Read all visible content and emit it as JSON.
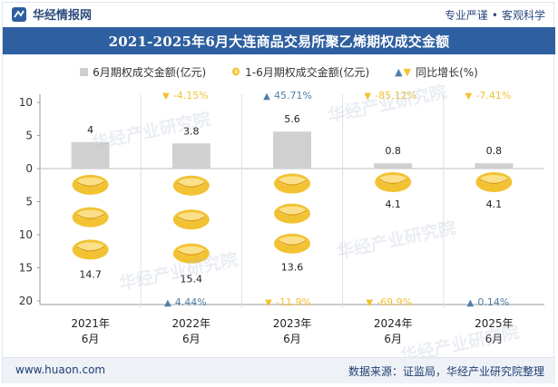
{
  "header": {
    "brand": "华经情报网",
    "tagline_left": "专业严谨",
    "tagline_right": "客观科学"
  },
  "footer": {
    "url": "www.huaon.com",
    "source": "数据来源：证监局，华经产业研究院整理"
  },
  "watermark": "华经产业研究院",
  "colors": {
    "title_bg": "#2e5fa0",
    "bar": "#d0d0d0",
    "coin": "#f2c232",
    "up": "#4f7fa8",
    "down": "#f2c232"
  },
  "chart_data": {
    "type": "bar",
    "title": "2021-2025年6月大连商品交易所聚乙烯期权成交金额",
    "categories": [
      "2021年\n6月",
      "2022年\n6月",
      "2023年\n6月",
      "2024年\n6月",
      "2025年\n6月"
    ],
    "legend": [
      "6月期权成交金额(亿元)",
      "1-6月期权成交金额(亿元)",
      "同比增长(%)"
    ],
    "legend_position": "top",
    "series": [
      {
        "name": "6月期权成交金额(亿元)",
        "values": [
          4,
          3.8,
          5.6,
          0.8,
          0.8
        ],
        "labels": [
          "4",
          "3.8",
          "5.6",
          "0.8",
          "0.8"
        ]
      },
      {
        "name": "1-6月期权成交金额(亿元)",
        "values": [
          14.7,
          15.4,
          13.6,
          4.1,
          4.1
        ],
        "labels": [
          "14.7",
          "15.4",
          "13.6",
          "4.1",
          "4.1"
        ]
      }
    ],
    "growth_monthly": [
      {
        "label": "",
        "dir": ""
      },
      {
        "label": "-4.15%",
        "dir": "down"
      },
      {
        "label": "45.71%",
        "dir": "up"
      },
      {
        "label": "-85.12%",
        "dir": "down"
      },
      {
        "label": "-7.41%",
        "dir": "down"
      }
    ],
    "growth_ytd": [
      {
        "label": "",
        "dir": ""
      },
      {
        "label": "4.44%",
        "dir": "up"
      },
      {
        "label": "-11.9%",
        "dir": "down"
      },
      {
        "label": "-69.9%",
        "dir": "down"
      },
      {
        "label": "0.14%",
        "dir": "up"
      }
    ],
    "y_ticks_upper": [
      "10",
      "5",
      "0"
    ],
    "y_ticks_lower": [
      "5",
      "10",
      "15",
      "20"
    ],
    "ylim_upper": [
      0,
      10
    ],
    "ylim_lower": [
      0,
      20
    ],
    "grid": false
  }
}
